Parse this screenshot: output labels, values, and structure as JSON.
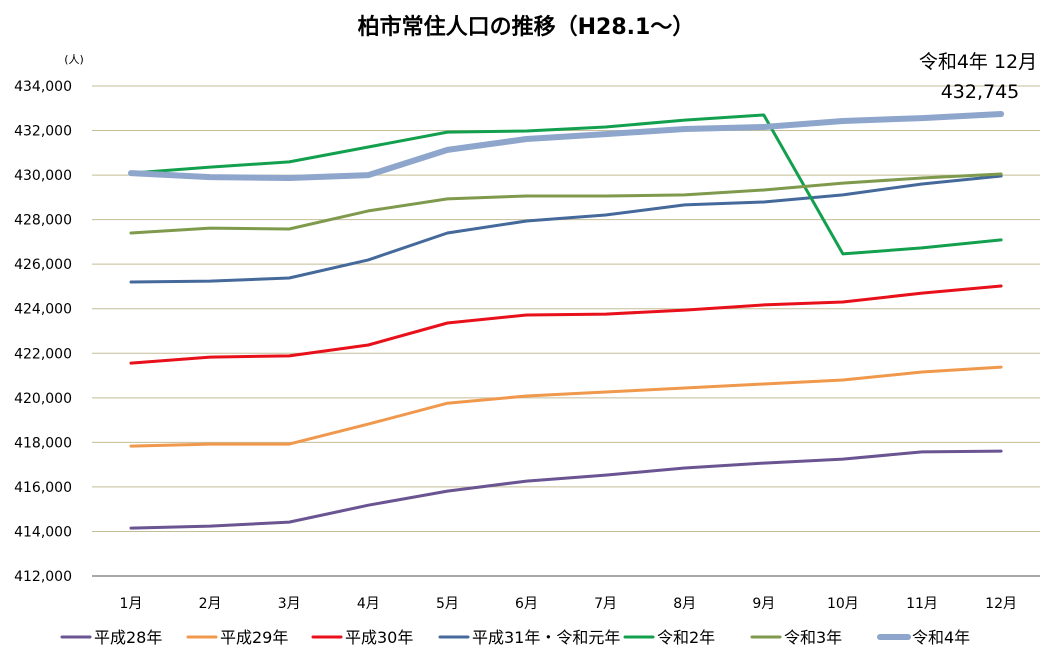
{
  "chart_data": {
    "type": "line",
    "title": "柏市常住人口の推移（H28.1～）",
    "ylabel": "(人)",
    "xlabel": "",
    "ylim": [
      412000,
      434000
    ],
    "yticks": [
      412000,
      414000,
      416000,
      418000,
      420000,
      422000,
      424000,
      426000,
      428000,
      430000,
      432000,
      434000
    ],
    "ytick_labels": [
      "412,000",
      "414,000",
      "416,000",
      "418,000",
      "420,000",
      "422,000",
      "424,000",
      "426,000",
      "428,000",
      "430,000",
      "432,000",
      "434,000"
    ],
    "categories": [
      "1月",
      "2月",
      "3月",
      "4月",
      "5月",
      "6月",
      "7月",
      "8月",
      "9月",
      "10月",
      "11月",
      "12月"
    ],
    "grid": true,
    "legend_position": "bottom",
    "annotation": {
      "line1": "令和4年 12月",
      "line2": "432,745",
      "series": "令和4年",
      "category": "12月",
      "value": 432745
    },
    "series": [
      {
        "name": "平成28年",
        "color": "#6a5491",
        "width": 3,
        "values": [
          414150,
          414240,
          414420,
          415180,
          415810,
          416260,
          416530,
          416850,
          417070,
          417250,
          417570,
          417610
        ]
      },
      {
        "name": "平成29年",
        "color": "#f0984c",
        "width": 3,
        "values": [
          417830,
          417920,
          417920,
          418820,
          419760,
          420080,
          420260,
          420440,
          420620,
          420800,
          421160,
          421380
        ]
      },
      {
        "name": "平成30年",
        "color": "#e8101a",
        "width": 3,
        "values": [
          421560,
          421830,
          421880,
          422370,
          423360,
          423720,
          423760,
          423940,
          424170,
          424300,
          424700,
          425020
        ]
      },
      {
        "name": "平成31年・令和元年",
        "color": "#44699a",
        "width": 3,
        "values": [
          425200,
          425240,
          425380,
          426190,
          427400,
          427940,
          428210,
          428660,
          428790,
          429110,
          429600,
          429960
        ]
      },
      {
        "name": "令和2年",
        "color": "#13a04e",
        "width": 3,
        "values": [
          430090,
          430360,
          430590,
          431260,
          431930,
          431980,
          432160,
          432470,
          432700,
          426460,
          426730,
          427090
        ]
      },
      {
        "name": "令和3年",
        "color": "#7f9a4c",
        "width": 3,
        "values": [
          427400,
          427620,
          427580,
          428390,
          428930,
          429060,
          429060,
          429110,
          429330,
          429640,
          429870,
          430050
        ]
      },
      {
        "name": "令和4年",
        "color": "#8ea5cc",
        "width": 6,
        "values": [
          430090,
          429910,
          429870,
          430000,
          431130,
          431620,
          431840,
          432070,
          432160,
          432430,
          432560,
          432745
        ]
      }
    ]
  }
}
